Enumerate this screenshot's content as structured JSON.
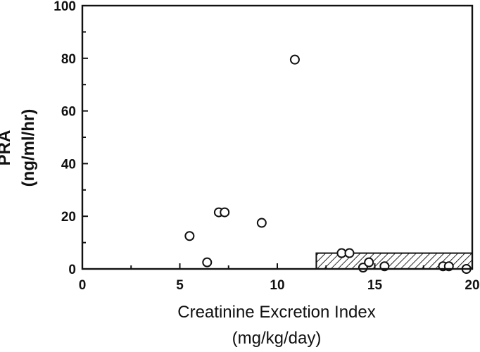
{
  "chart_data": {
    "type": "scatter",
    "title": "",
    "xlabel": {
      "line1": "Creatinine Excretion Index",
      "line2": "(mg/kg/day)"
    },
    "ylabel": {
      "line1": "PRA",
      "line2": "(ng/ml/hr)"
    },
    "xlim": [
      0,
      20
    ],
    "ylim": [
      0,
      100
    ],
    "x_ticks": [
      0,
      5,
      10,
      15,
      20
    ],
    "y_ticks": [
      0,
      20,
      40,
      60,
      80,
      100
    ],
    "grid": false,
    "points": [
      {
        "x": 5.5,
        "y": 12.5
      },
      {
        "x": 6.4,
        "y": 2.5
      },
      {
        "x": 7.0,
        "y": 21.5
      },
      {
        "x": 7.3,
        "y": 21.5
      },
      {
        "x": 9.2,
        "y": 17.5
      },
      {
        "x": 10.9,
        "y": 79.5
      },
      {
        "x": 13.3,
        "y": 6
      },
      {
        "x": 13.7,
        "y": 6
      },
      {
        "x": 14.4,
        "y": 0.5
      },
      {
        "x": 14.7,
        "y": 2.5
      },
      {
        "x": 15.5,
        "y": 1
      },
      {
        "x": 18.5,
        "y": 1
      },
      {
        "x": 18.8,
        "y": 1
      },
      {
        "x": 19.7,
        "y": 0
      }
    ],
    "normal_range": {
      "x_start": 12,
      "x_end": 20,
      "y_low": 0,
      "y_high": 6,
      "style": "hatched"
    }
  }
}
